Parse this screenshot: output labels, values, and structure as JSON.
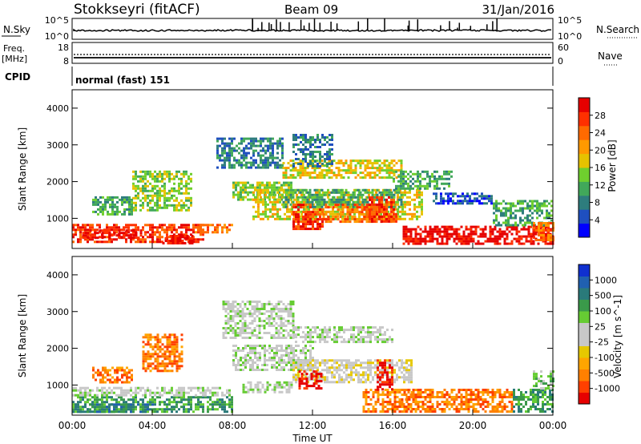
{
  "header": {
    "station": "Stokkseyri (fitACF)",
    "beam": "Beam 09",
    "date": "31/Jan/2016"
  },
  "noise_panel": {
    "left_label": "N.Sky",
    "right_label": "N.Search",
    "left_ticks": [
      "10^5",
      "10^0"
    ],
    "right_ticks": [
      "10^5",
      "10^0"
    ]
  },
  "freq_panel": {
    "left_label": "Freq.",
    "left_unit": "[MHz]",
    "right_label": "Nave",
    "left_ticks": [
      "18",
      "8"
    ],
    "right_ticks": [
      "60",
      "0"
    ]
  },
  "cpid": {
    "label": "CPID",
    "value": "normal (fast) 151"
  },
  "chart_data": [
    {
      "type": "heatmap",
      "panel": "power",
      "ylabel": "Slant Range [km]",
      "ylim": [
        180,
        4500
      ],
      "yticks": [
        "1000",
        "2000",
        "3000",
        "4000"
      ],
      "colorbar_label": "Power [dB]",
      "colorbar_ticks": [
        "28",
        "24",
        "20",
        "16",
        "12",
        "8",
        "4"
      ],
      "colorbar_colors": [
        "#0000ff",
        "#1f4fbf",
        "#2e7d7d",
        "#41a85a",
        "#6fcf2e",
        "#e6c200",
        "#ff9900",
        "#ff6a00",
        "#ff3000",
        "#e60000"
      ],
      "regions": [
        {
          "t": [
            0,
            6.5
          ],
          "r": [
            350,
            850
          ],
          "level": 8
        },
        {
          "t": [
            0.5,
            3.5
          ],
          "r": [
            450,
            700
          ],
          "level": 9
        },
        {
          "t": [
            4.5,
            6
          ],
          "r": [
            350,
            550
          ],
          "level": 9
        },
        {
          "t": [
            6,
            8
          ],
          "r": [
            600,
            850
          ],
          "level": 7
        },
        {
          "t": [
            3,
            6
          ],
          "r": [
            1200,
            2300
          ],
          "level": 4
        },
        {
          "t": [
            1,
            3
          ],
          "r": [
            1100,
            1600
          ],
          "level": 3
        },
        {
          "t": [
            7.2,
            10.5
          ],
          "r": [
            2400,
            3200
          ],
          "level": 2
        },
        {
          "t": [
            8,
            11
          ],
          "r": [
            1500,
            2000
          ],
          "level": 4
        },
        {
          "t": [
            9,
            17.5
          ],
          "r": [
            1000,
            1800
          ],
          "level": 5
        },
        {
          "t": [
            10.5,
            16.5
          ],
          "r": [
            2100,
            2600
          ],
          "level": 5
        },
        {
          "t": [
            10.5,
            16.5
          ],
          "r": [
            1300,
            1800
          ],
          "level": 3
        },
        {
          "t": [
            11,
            12.5
          ],
          "r": [
            700,
            1400
          ],
          "level": 8
        },
        {
          "t": [
            12.5,
            16
          ],
          "r": [
            900,
            1400
          ],
          "level": 7
        },
        {
          "t": [
            14.8,
            16.2
          ],
          "r": [
            900,
            1600
          ],
          "level": 8
        },
        {
          "t": [
            11,
            13
          ],
          "r": [
            2400,
            3300
          ],
          "level": 2
        },
        {
          "t": [
            16,
            19
          ],
          "r": [
            1800,
            2300
          ],
          "level": 3
        },
        {
          "t": [
            16.5,
            24
          ],
          "r": [
            300,
            800
          ],
          "level": 9
        },
        {
          "t": [
            18,
            21
          ],
          "r": [
            1400,
            1700
          ],
          "level": 1
        },
        {
          "t": [
            21,
            24
          ],
          "r": [
            800,
            1500
          ],
          "level": 3
        },
        {
          "t": [
            23,
            24
          ],
          "r": [
            400,
            900
          ],
          "level": 7
        }
      ]
    },
    {
      "type": "heatmap",
      "panel": "velocity",
      "xlabel": "Time UT",
      "xlim": [
        0,
        24
      ],
      "xticks": [
        "00:00",
        "04:00",
        "08:00",
        "12:00",
        "16:00",
        "20:00",
        "00:00"
      ],
      "ylabel": "Slant Range [km]",
      "ylim": [
        180,
        4500
      ],
      "yticks": [
        "1000",
        "2000",
        "3000",
        "4000"
      ],
      "colorbar_label": "Velocity [m s^-1]",
      "colorbar_ticks": [
        "1000",
        "500",
        "100",
        "25",
        "-25",
        "-100",
        "-500",
        "-1000"
      ],
      "colorbar_colors": [
        "#e60000",
        "#ff4000",
        "#ff8000",
        "#ffa500",
        "#e6c800",
        "#c8c8c8",
        "#c8c8c8",
        "#66cc33",
        "#3a9a4a",
        "#2a7a7a",
        "#2060b0",
        "#1030d0"
      ],
      "regions": [
        {
          "t": [
            0,
            8
          ],
          "r": [
            300,
            700
          ],
          "level": 8
        },
        {
          "t": [
            0,
            4
          ],
          "r": [
            300,
            500
          ],
          "level": 9
        },
        {
          "t": [
            0,
            8
          ],
          "r": [
            700,
            950
          ],
          "level": 6
        },
        {
          "t": [
            3.5,
            5.5
          ],
          "r": [
            1400,
            2400
          ],
          "level": 2
        },
        {
          "t": [
            1,
            3
          ],
          "r": [
            1100,
            1500
          ],
          "level": 2
        },
        {
          "t": [
            7.5,
            11
          ],
          "r": [
            2300,
            3300
          ],
          "level": 6
        },
        {
          "t": [
            8,
            12
          ],
          "r": [
            1400,
            2100
          ],
          "level": 6
        },
        {
          "t": [
            8.5,
            11
          ],
          "r": [
            800,
            1100
          ],
          "level": 6
        },
        {
          "t": [
            11,
            17
          ],
          "r": [
            1100,
            1700
          ],
          "level": 5
        },
        {
          "t": [
            11,
            16
          ],
          "r": [
            2200,
            2600
          ],
          "level": 6
        },
        {
          "t": [
            11.3,
            12.5
          ],
          "r": [
            900,
            1400
          ],
          "level": 0
        },
        {
          "t": [
            14.5,
            17
          ],
          "r": [
            300,
            900
          ],
          "level": 2
        },
        {
          "t": [
            15.2,
            16
          ],
          "r": [
            900,
            1700
          ],
          "level": 0
        },
        {
          "t": [
            16.5,
            22
          ],
          "r": [
            300,
            900
          ],
          "level": 2
        },
        {
          "t": [
            22,
            24
          ],
          "r": [
            300,
            900
          ],
          "level": 8
        },
        {
          "t": [
            23,
            24
          ],
          "r": [
            900,
            1400
          ],
          "level": 7
        }
      ]
    }
  ]
}
